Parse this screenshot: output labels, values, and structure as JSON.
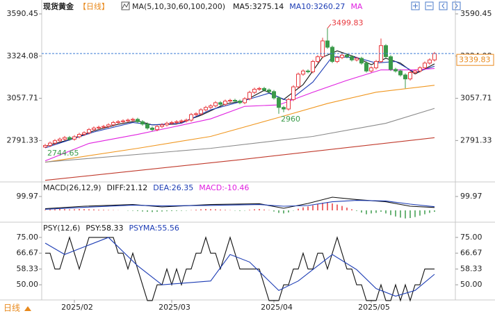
{
  "header": {
    "name": "现货黄金",
    "period": "【日线】",
    "ma_params": "MA(5,10,30,60,100,200)"
  },
  "footer": {
    "period": "日线"
  },
  "chart_data": [
    {
      "type": "candlestick",
      "categories": [
        null,
        null,
        null,
        null,
        null,
        null,
        "2025/02",
        null,
        null,
        null,
        null,
        null,
        null,
        null,
        null,
        null,
        null,
        null,
        null,
        null,
        null,
        null,
        null,
        null,
        null,
        null,
        "2025/03",
        null,
        null,
        null,
        null,
        null,
        null,
        null,
        null,
        null,
        null,
        null,
        null,
        null,
        null,
        null,
        null,
        null,
        null,
        null,
        null,
        "2025/04",
        null,
        null,
        null,
        null,
        null,
        null,
        null,
        null,
        null,
        null,
        null,
        null,
        null,
        null,
        null,
        null,
        null,
        null,
        null,
        "2025/05",
        null,
        null,
        null,
        null,
        null,
        null,
        null,
        null,
        null,
        null,
        null,
        null,
        null
      ],
      "open": [
        2750,
        2760,
        2775,
        2790,
        2800,
        2810,
        2800,
        2815,
        2830,
        2840,
        2860,
        2870,
        2875,
        2880,
        2890,
        2905,
        2910,
        2915,
        2920,
        2925,
        2910,
        2895,
        2870,
        2860,
        2880,
        2890,
        2900,
        2905,
        2910,
        2915,
        2920,
        2955,
        2960,
        2985,
        3000,
        3010,
        3030,
        3020,
        3040,
        3045,
        3040,
        3030,
        3055,
        3095,
        3115,
        3120,
        3110,
        3100,
        3060,
        3000,
        2990,
        3050,
        3130,
        3210,
        3230,
        3225,
        3290,
        3320,
        3420,
        3380,
        3290,
        3315,
        3330,
        3320,
        3300,
        3310,
        3280,
        3230,
        3250,
        3290,
        3390,
        3320,
        3240,
        3230,
        3205,
        3180,
        3220,
        3230,
        3250,
        3280,
        3300
      ],
      "high": [
        2770,
        2785,
        2800,
        2810,
        2820,
        2820,
        2825,
        2840,
        2850,
        2870,
        2880,
        2885,
        2890,
        2900,
        2915,
        2920,
        2925,
        2930,
        2935,
        2935,
        2920,
        2905,
        2880,
        2890,
        2900,
        2910,
        2915,
        2920,
        2925,
        2930,
        2965,
        2970,
        2995,
        3010,
        3020,
        3040,
        3040,
        3050,
        3055,
        3055,
        3050,
        3065,
        3105,
        3125,
        3130,
        3130,
        3120,
        3110,
        3070,
        3010,
        3060,
        3140,
        3220,
        3240,
        3240,
        3300,
        3330,
        3440,
        3499.83,
        3390,
        3325,
        3340,
        3340,
        3330,
        3320,
        3320,
        3290,
        3260,
        3300,
        3435,
        3400,
        3330,
        3250,
        3240,
        3215,
        3230,
        3240,
        3260,
        3290,
        3310,
        3350
      ],
      "low": [
        2744.65,
        2750,
        2765,
        2780,
        2790,
        2790,
        2790,
        2805,
        2820,
        2830,
        2850,
        2860,
        2865,
        2870,
        2880,
        2895,
        2900,
        2905,
        2910,
        2900,
        2885,
        2860,
        2850,
        2850,
        2870,
        2880,
        2890,
        2895,
        2900,
        2905,
        2910,
        2945,
        2950,
        2975,
        2990,
        3000,
        3010,
        3010,
        3030,
        3030,
        3020,
        3020,
        3045,
        3085,
        3105,
        3100,
        3090,
        3050,
        2960,
        2970,
        2980,
        3040,
        3120,
        3200,
        3215,
        3215,
        3280,
        3310,
        3370,
        3280,
        3280,
        3305,
        3310,
        3290,
        3290,
        3270,
        3220,
        3220,
        3240,
        3280,
        3310,
        3230,
        3220,
        3195,
        3120.64,
        3170,
        3210,
        3220,
        3240,
        3270,
        3290
      ],
      "close": [
        2760,
        2775,
        2790,
        2800,
        2810,
        2800,
        2815,
        2830,
        2840,
        2860,
        2870,
        2875,
        2880,
        2890,
        2905,
        2910,
        2915,
        2920,
        2925,
        2910,
        2895,
        2870,
        2860,
        2880,
        2890,
        2900,
        2905,
        2910,
        2915,
        2920,
        2955,
        2960,
        2985,
        3000,
        3010,
        3030,
        3020,
        3040,
        3045,
        3040,
        3030,
        3055,
        3095,
        3115,
        3120,
        3110,
        3100,
        3060,
        3000,
        2990,
        3050,
        3130,
        3210,
        3230,
        3225,
        3290,
        3320,
        3420,
        3380,
        3290,
        3315,
        3330,
        3320,
        3300,
        3310,
        3280,
        3230,
        3250,
        3290,
        3390,
        3320,
        3240,
        3230,
        3205,
        3180,
        3220,
        3230,
        3250,
        3280,
        3300,
        3339.83
      ],
      "up_color": "#e8383d",
      "down_color": "#3a9a4a",
      "last_color": "#e8891c",
      "ylim": [
        2530,
        3643
      ],
      "yticks": [
        3590.45,
        3324.08,
        3057.71,
        2791.33
      ],
      "series": [
        {
          "label": "MA5:3275.14",
          "color": "#111111",
          "x": [
            0,
            5,
            10,
            15,
            19,
            22,
            27,
            32,
            37,
            41,
            45,
            49,
            53,
            57,
            60,
            64,
            67,
            70,
            73,
            76,
            80
          ],
          "values": [
            2755,
            2797,
            2852,
            2894,
            2916,
            2890,
            2895,
            2950,
            3022,
            3042,
            3108,
            3050,
            3144,
            3317,
            3357,
            3315,
            3270,
            3310,
            3280,
            3211,
            3275.14
          ]
        },
        {
          "label": "MA10:3260.27",
          "color": "#1c3cb4",
          "x": [
            0,
            10,
            18,
            22,
            28,
            34,
            40,
            46,
            50,
            55,
            59,
            64,
            68,
            72,
            76,
            80
          ],
          "values": [
            2745,
            2845,
            2905,
            2890,
            2900,
            2985,
            3035,
            3090,
            3040,
            3160,
            3320,
            3315,
            3280,
            3290,
            3220,
            3260.27
          ]
        },
        {
          "label": "MA",
          "color": "#e020e0",
          "x": [
            0,
            9,
            19,
            26,
            34,
            41,
            48,
            55,
            62,
            69,
            76,
            80
          ],
          "values": [
            2663,
            2773,
            2830,
            2875,
            2928,
            3007,
            3016,
            3096,
            3171,
            3237,
            3237,
            3246
          ]
        },
        {
          "color": "#f0961e",
          "x": [
            0,
            19,
            34,
            48,
            58,
            68,
            80
          ],
          "values": [
            2654,
            2742,
            2817,
            2937,
            3025,
            3096,
            3140
          ]
        },
        {
          "color": "#8a8a8a",
          "x": [
            0,
            34,
            55,
            70,
            80
          ],
          "values": [
            2655,
            2742,
            2817,
            2900,
            2994
          ]
        },
        {
          "color": "#c0392b",
          "x": [
            0,
            40,
            80
          ],
          "values": [
            2540,
            2670,
            2809
          ]
        }
      ]
    },
    {
      "type": "macd",
      "title": "MACD(26,12,9)",
      "ylim": [
        -75,
        190
      ],
      "yticks": [
        99.97
      ],
      "series": [
        {
          "label": "DIFF:21.12",
          "color": "#111111",
          "x": [
            0,
            8,
            18,
            24,
            34,
            44,
            49,
            54,
            59,
            64,
            70,
            75,
            80
          ],
          "values": [
            12,
            30,
            42,
            25,
            42,
            48,
            15,
            50,
            95,
            78,
            62,
            30,
            21.12
          ]
        },
        {
          "label": "DEA:26.35",
          "color": "#1c3cb4",
          "x": [
            0,
            8,
            18,
            24,
            34,
            44,
            49,
            54,
            59,
            64,
            70,
            75,
            80
          ],
          "values": [
            8,
            22,
            38,
            32,
            36,
            42,
            30,
            35,
            62,
            72,
            68,
            45,
            26.35
          ]
        }
      ],
      "histogram": {
        "label": "MACD:-10.46",
        "color": "#e020e0",
        "up_color": "#e8383d",
        "down_color": "#3a9a4a",
        "values": [
          4,
          6,
          8,
          10,
          9,
          7,
          8,
          10,
          9,
          8,
          7,
          5,
          4,
          3,
          2,
          1,
          0,
          -2,
          -3,
          -5,
          -8,
          -10,
          -12,
          -10,
          -8,
          -6,
          -5,
          -4,
          -3,
          -2,
          2,
          5,
          8,
          10,
          9,
          8,
          6,
          4,
          2,
          -2,
          -4,
          -2,
          4,
          8,
          10,
          6,
          2,
          -8,
          -18,
          -22,
          -15,
          -2,
          12,
          22,
          28,
          36,
          44,
          55,
          58,
          50,
          42,
          32,
          20,
          8,
          -4,
          -16,
          -28,
          -22,
          -18,
          -10,
          -22,
          -34,
          -44,
          -52,
          -58,
          -55,
          -48,
          -38,
          -28,
          -18,
          -10.46
        ]
      }
    },
    {
      "type": "psy",
      "title": "PSY(12,6)",
      "ylim": [
        42,
        82.3
      ],
      "yticks": [
        {
          "value": 75,
          "label": "75.00"
        },
        66.67,
        58.33,
        {
          "value": 50,
          "label": "50.00"
        }
      ],
      "series": [
        {
          "label": "PSY:58.33",
          "color": "#111111",
          "values": [
            66.67,
            66.67,
            58.33,
            58.33,
            66.67,
            75,
            66.67,
            58.33,
            66.67,
            75,
            75,
            75,
            75,
            75,
            75,
            66.67,
            66.67,
            58.33,
            66.67,
            58.33,
            50,
            41.67,
            41.67,
            50,
            50,
            58.33,
            50,
            58.33,
            50,
            58.33,
            58.33,
            66.67,
            66.67,
            75,
            66.67,
            66.67,
            58.33,
            66.67,
            75,
            66.67,
            58.33,
            58.33,
            58.33,
            58.33,
            58.33,
            50,
            41.67,
            41.67,
            41.67,
            50,
            50,
            58.33,
            58.33,
            66.67,
            58.33,
            58.33,
            66.67,
            66.67,
            58.33,
            66.67,
            75,
            66.67,
            58.33,
            58.33,
            50,
            50,
            41.67,
            41.67,
            41.67,
            50,
            41.67,
            41.67,
            50,
            41.67,
            50,
            41.67,
            50,
            50,
            58.33,
            58.33,
            58.33
          ]
        },
        {
          "label": "PSYMA:55.56",
          "color": "#1c3cb4",
          "x": [
            0,
            4,
            13,
            19,
            24,
            34,
            38,
            42,
            48,
            52,
            56,
            59,
            64,
            68,
            72,
            76,
            80
          ],
          "values": [
            72,
            66,
            75,
            60,
            50,
            52,
            66,
            62,
            47,
            52,
            60,
            66,
            58,
            48,
            44,
            47,
            55.56
          ]
        }
      ]
    }
  ]
}
